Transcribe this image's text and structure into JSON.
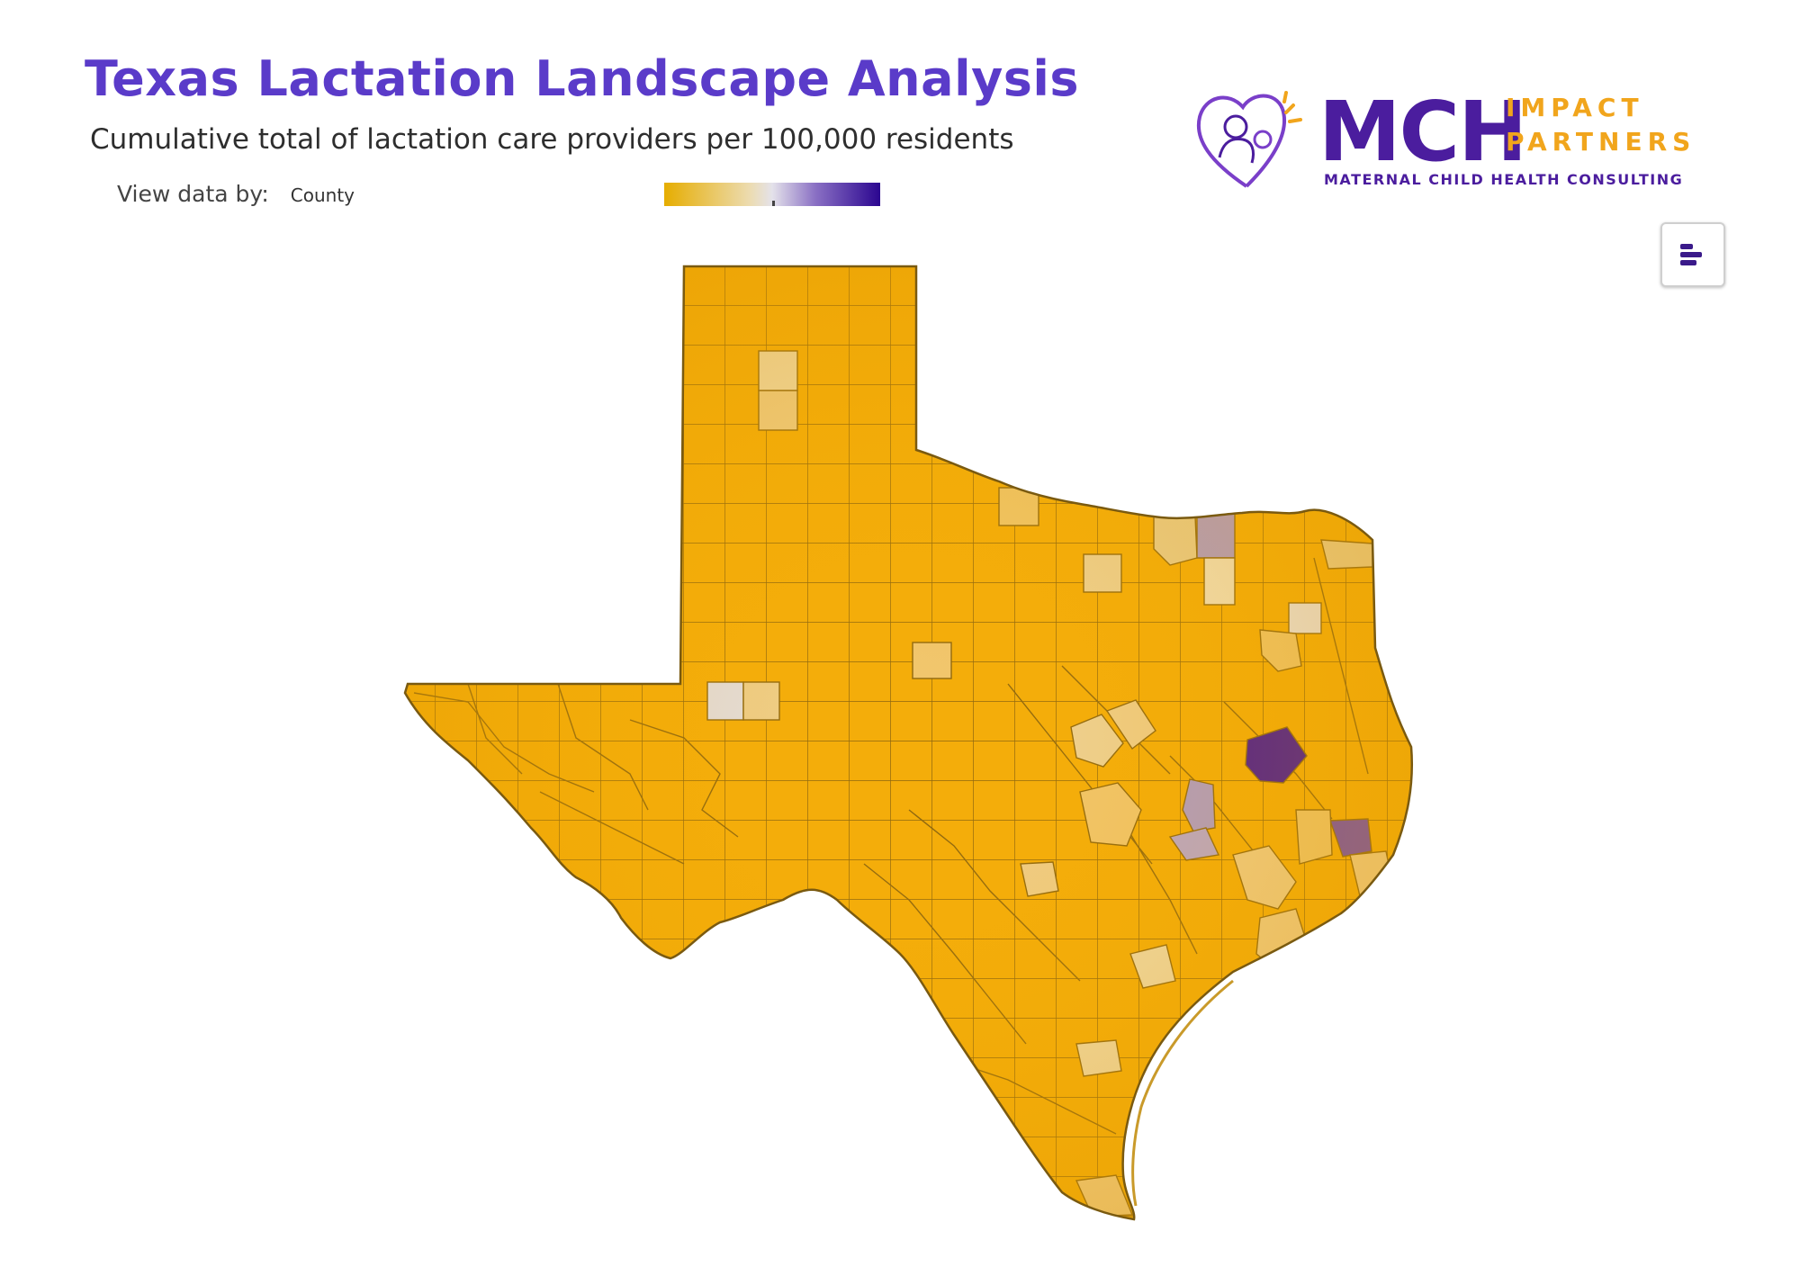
{
  "header": {
    "title": "Texas Lactation Landscape Analysis",
    "subtitle": "Cumulative total of lactation care providers per 100,000 residents"
  },
  "controls": {
    "view_label": "View data by:",
    "view_value": "County"
  },
  "legend": {
    "low_color": "#e6ad00",
    "mid_color": "#e4e2ea",
    "high_color": "#2b0690"
  },
  "logo": {
    "mch": "MCH",
    "impact": "IMPACT",
    "partners": "PARTNERS",
    "tagline": "MATERNAL CHILD HEALTH CONSULTING"
  },
  "toolbar": {
    "toggle_icon": "bar-chart-icon"
  },
  "map": {
    "region": "Texas",
    "unit": "County",
    "base_color": "#f4ad0a",
    "border_color": "#7a5a10",
    "highlight_colors": [
      "#3a0ca0",
      "#6a46b8",
      "#a99ad6",
      "#e2e0ea",
      "#ecd6a4",
      "#efc770"
    ]
  }
}
